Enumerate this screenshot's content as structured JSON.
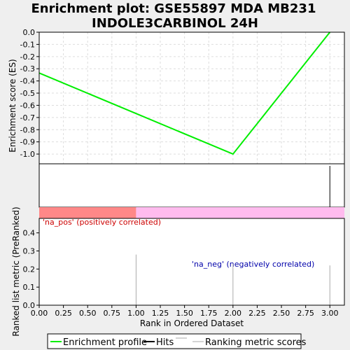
{
  "chart_data": {
    "type": "line",
    "title_lines": [
      "Enrichment plot: GSE55897 MDA MB231",
      "INDOLE3CARBINOL 24H"
    ],
    "xlabel": "Rank in Ordered Dataset",
    "es_panel": {
      "ylabel": "Enrichment score (ES)",
      "ylim": [
        -1.08,
        0.0
      ],
      "yticks": [
        0.0,
        -0.1,
        -0.2,
        -0.3,
        -0.4,
        -0.5,
        -0.6,
        -0.7,
        -0.8,
        -0.9,
        -1.0
      ],
      "ytick_labels": [
        "0.0",
        "-0.1",
        "-0.2",
        "-0.3",
        "-0.4",
        "-0.5",
        "-0.6",
        "-0.7",
        "-0.8",
        "-0.9",
        "-1.0"
      ],
      "series": [
        {
          "name": "Enrichment profile",
          "color": "#00ee00",
          "x": [
            0,
            2,
            3
          ],
          "y": [
            -0.335,
            -1.0,
            0.0
          ]
        }
      ]
    },
    "hits": [
      3
    ],
    "metric_panel": {
      "ylabel": "Ranked list metric (PreRanked)",
      "ylim": [
        0,
        0.48
      ],
      "yticks": [
        0.0,
        0.1,
        0.2,
        0.3,
        0.4
      ],
      "ytick_labels": [
        "0.0",
        "0.1",
        "0.2",
        "0.3",
        "0.4"
      ],
      "bars": {
        "x": [
          1,
          2,
          3
        ],
        "values": [
          0.28,
          0.23,
          0.22
        ]
      },
      "pos_label": "'na_pos' (positively correlated)",
      "neg_label": "'na_neg' (negatively correlated)"
    },
    "xlim": [
      0,
      3.15
    ],
    "xticks": [
      0.0,
      0.25,
      0.5,
      0.75,
      1.0,
      1.25,
      1.5,
      1.75,
      2.0,
      2.25,
      2.5,
      2.75,
      3.0
    ],
    "xtick_labels": [
      "0.00",
      "0.25",
      "0.50",
      "0.75",
      "1.00",
      "1.25",
      "1.50",
      "1.75",
      "2.00",
      "2.25",
      "2.50",
      "2.75",
      "3.00"
    ],
    "gradient_split_x": 1.0,
    "colors": {
      "pos": "#ff8888",
      "neg": "#ffbbee",
      "enrichment": "#00ee00",
      "hits": "#000000",
      "metric": "#aaaaaa",
      "grid": "#dddddd"
    },
    "legend": {
      "items": [
        {
          "name": "Enrichment profile",
          "symbol": "green-line"
        },
        {
          "name": "Hits",
          "symbol": "black-line"
        },
        {
          "name": "Ranking metric scores",
          "symbol": "gray-line"
        }
      ]
    }
  }
}
